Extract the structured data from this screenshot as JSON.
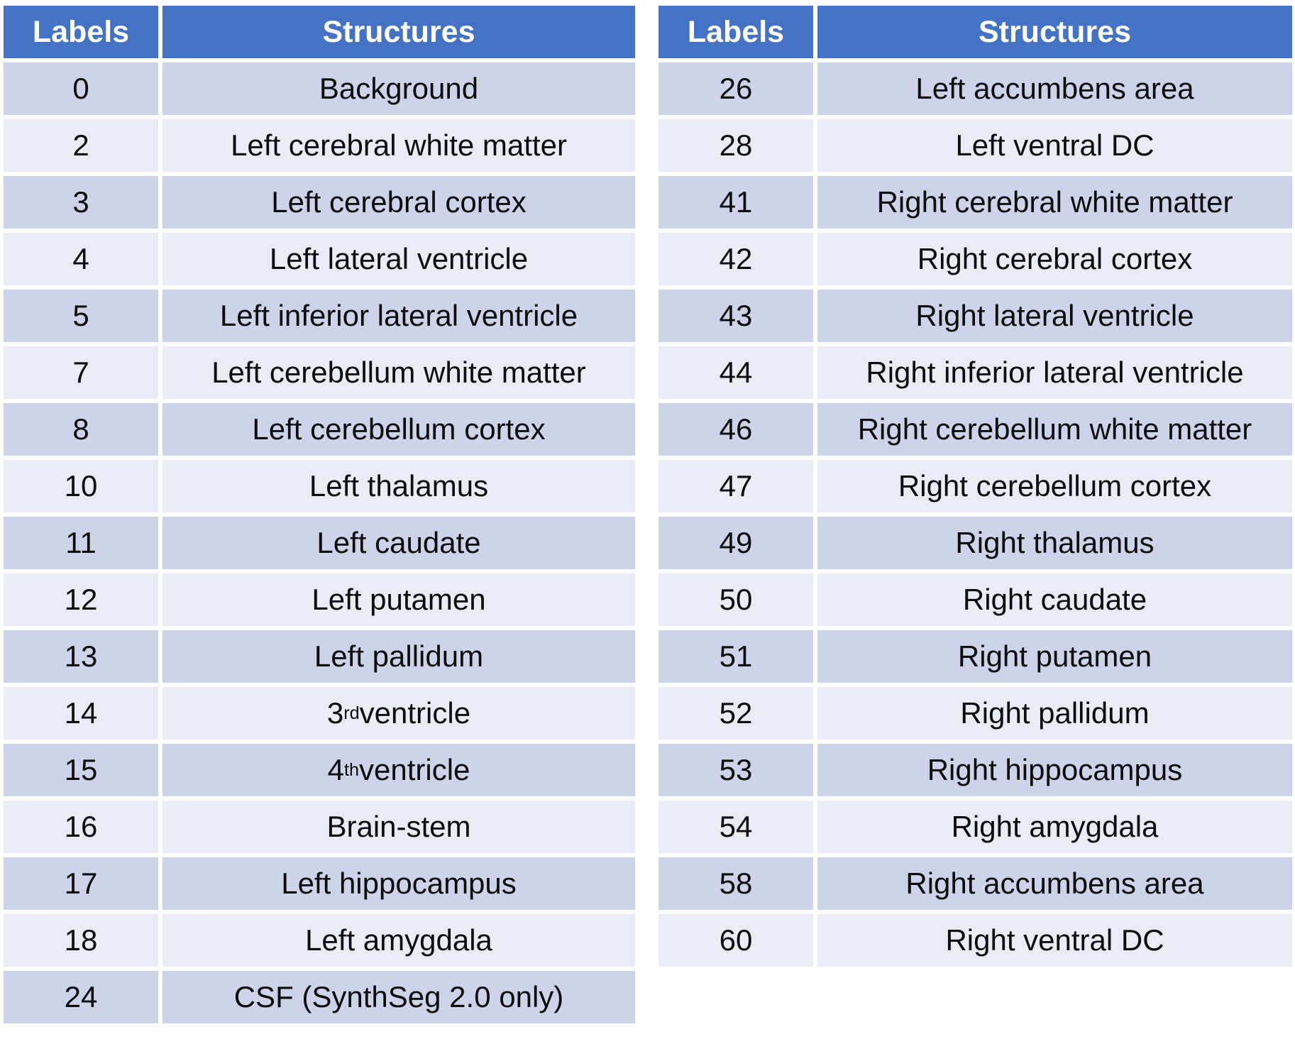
{
  "colors": {
    "background": "#FFFFFF",
    "header_bg": "#4472C4",
    "header_text": "#FFFFFF",
    "row_dark": "#CDD3E8",
    "row_light": "#E9EBF5",
    "text": "#0D0D0D"
  },
  "tables": [
    {
      "name": "left-label-table",
      "headers": {
        "labels": "Labels",
        "structures": "Structures"
      },
      "rows": [
        {
          "label": "0",
          "structure": "Background"
        },
        {
          "label": "2",
          "structure": "Left cerebral white matter"
        },
        {
          "label": "3",
          "structure": "Left cerebral cortex"
        },
        {
          "label": "4",
          "structure": "Left lateral ventricle"
        },
        {
          "label": "5",
          "structure": "Left inferior lateral ventricle"
        },
        {
          "label": "7",
          "structure": "Left cerebellum white matter"
        },
        {
          "label": "8",
          "structure": "Left cerebellum cortex"
        },
        {
          "label": "10",
          "structure": "Left thalamus"
        },
        {
          "label": "11",
          "structure": "Left caudate"
        },
        {
          "label": "12",
          "structure": "Left putamen"
        },
        {
          "label": "13",
          "structure": "Left pallidum"
        },
        {
          "label": "14",
          "structure": "3{rd} ventricle"
        },
        {
          "label": "15",
          "structure": "4{th} ventricle"
        },
        {
          "label": "16",
          "structure": "Brain-stem"
        },
        {
          "label": "17",
          "structure": "Left hippocampus"
        },
        {
          "label": "18",
          "structure": "Left amygdala"
        },
        {
          "label": "24",
          "structure": "CSF (SynthSeg 2.0 only)"
        }
      ]
    },
    {
      "name": "right-label-table",
      "headers": {
        "labels": "Labels",
        "structures": "Structures"
      },
      "rows": [
        {
          "label": "26",
          "structure": "Left accumbens area"
        },
        {
          "label": "28",
          "structure": "Left ventral DC"
        },
        {
          "label": "41",
          "structure": "Right cerebral white matter"
        },
        {
          "label": "42",
          "structure": "Right cerebral cortex"
        },
        {
          "label": "43",
          "structure": "Right lateral ventricle"
        },
        {
          "label": "44",
          "structure": "Right inferior lateral ventricle"
        },
        {
          "label": "46",
          "structure": "Right cerebellum white matter"
        },
        {
          "label": "47",
          "structure": "Right cerebellum cortex"
        },
        {
          "label": "49",
          "structure": "Right thalamus"
        },
        {
          "label": "50",
          "structure": "Right caudate"
        },
        {
          "label": "51",
          "structure": "Right putamen"
        },
        {
          "label": "52",
          "structure": "Right pallidum"
        },
        {
          "label": "53",
          "structure": "Right hippocampus"
        },
        {
          "label": "54",
          "structure": "Right amygdala"
        },
        {
          "label": "58",
          "structure": "Right accumbens area"
        },
        {
          "label": "60",
          "structure": "Right ventral DC"
        }
      ]
    }
  ]
}
